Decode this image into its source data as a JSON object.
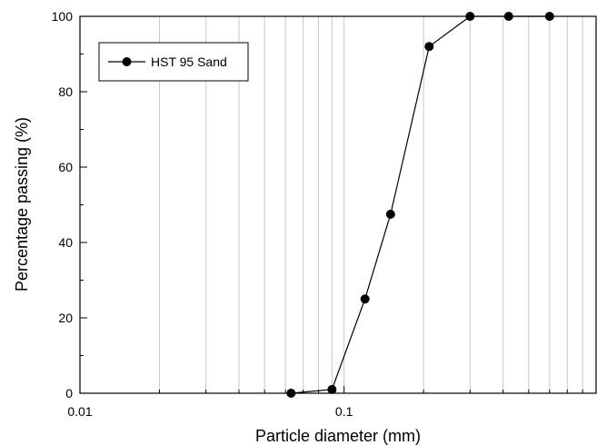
{
  "chart_data": {
    "type": "line",
    "title": "",
    "xlabel": "Particle diameter (mm)",
    "ylabel": "Percentage passing (%)",
    "x_scale": "log",
    "xlim": [
      0.01,
      0.9
    ],
    "ylim": [
      0,
      100
    ],
    "x_ticks": [
      0.01,
      0.1
    ],
    "x_tick_labels": [
      "0.01",
      "0.1"
    ],
    "y_ticks": [
      0,
      20,
      40,
      60,
      80,
      100
    ],
    "y_tick_labels": [
      "0",
      "20",
      "40",
      "60",
      "80",
      "100"
    ],
    "grid": "vertical",
    "legend_position": "top-left",
    "series": [
      {
        "name": "HST 95 Sand",
        "color": "#000000",
        "marker": "filled-circle",
        "x": [
          0.063,
          0.09,
          0.12,
          0.15,
          0.21,
          0.3,
          0.42,
          0.6
        ],
        "y": [
          0,
          1,
          25,
          47.5,
          92,
          100,
          100,
          100
        ]
      }
    ]
  }
}
